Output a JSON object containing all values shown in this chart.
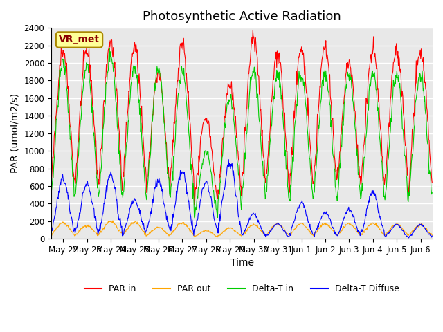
{
  "title": "Photosynthetic Active Radiation",
  "xlabel": "Time",
  "ylabel": "PAR (umol/m2/s)",
  "ylim": [
    0,
    2400
  ],
  "yticks": [
    0,
    200,
    400,
    600,
    800,
    1000,
    1200,
    1400,
    1600,
    1800,
    2000,
    2200,
    2400
  ],
  "xtick_labels": [
    "May 22",
    "May 23",
    "May 24",
    "May 25",
    "May 26",
    "May 27",
    "May 28",
    "May 29",
    "May 30",
    "May 31",
    "Jun 1",
    "Jun 2",
    "Jun 3",
    "Jun 4",
    "Jun 5",
    "Jun 6"
  ],
  "legend_labels": [
    "PAR in",
    "PAR out",
    "Delta-T in",
    "Delta-T Diffuse"
  ],
  "colors": [
    "#ff0000",
    "#ffa500",
    "#00cc00",
    "#0000ff"
  ],
  "annotation_text": "VR_met",
  "annotation_bg": "#ffff99",
  "annotation_border": "#aa8800",
  "background_color": "#e8e8e8",
  "grid_color": "#ffffff",
  "title_fontsize": 13,
  "label_fontsize": 10,
  "tick_fontsize": 8.5,
  "par_in_peaks": [
    2150,
    2130,
    2250,
    2190,
    1880,
    2230,
    1380,
    1760,
    2300,
    2100,
    2150,
    2180,
    2000,
    2150,
    2140,
    2130
  ],
  "par_out_peaks": [
    180,
    150,
    200,
    190,
    130,
    180,
    90,
    120,
    160,
    170,
    170,
    170,
    170,
    175,
    165,
    160
  ],
  "green_peaks": [
    2000,
    1950,
    2100,
    1950,
    1900,
    1900,
    980,
    1600,
    1900,
    1870,
    1870,
    1880,
    1870,
    1880,
    1870,
    1880
  ],
  "blue_peaks": [
    680,
    620,
    730,
    450,
    670,
    760,
    650,
    870,
    280,
    170,
    415,
    300,
    330,
    540,
    160,
    160
  ]
}
